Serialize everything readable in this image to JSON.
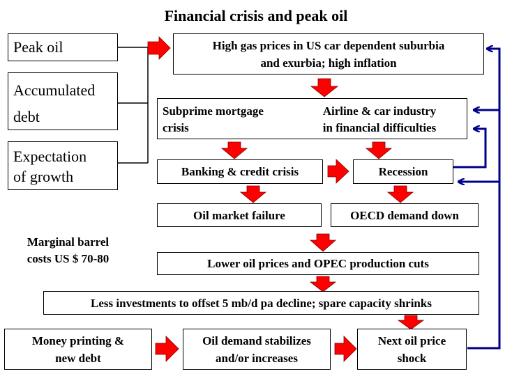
{
  "title": "Financial crisis and peak oil",
  "inputs": {
    "peak_oil": "Peak oil",
    "accumulated_debt": "Accumulated\ndebt",
    "expectation_growth": "Expectation\nof growth"
  },
  "nodes": {
    "high_gas": "High gas prices in US car dependent suburbia\nand exurbia; high inflation",
    "subprime": "Subprime mortgage\ncrisis",
    "airline_car": "Airline & car industry\nin financial difficulties",
    "banking": "Banking & credit crisis",
    "recession": "Recession",
    "oil_market_failure": "Oil market failure",
    "oecd_demand": "OECD demand down",
    "lower_oil": "Lower oil prices and OPEC production cuts",
    "less_investments": "Less investments to offset 5 mb/d pa decline; spare capacity shrinks",
    "money_printing": "Money printing &\nnew debt",
    "oil_demand": "Oil demand stabilizes\nand/or increases",
    "next_shock": "Next oil price\nshock"
  },
  "note": "Marginal barrel\ncosts US $ 70-80",
  "colors": {
    "arrow_fill": "#ff0000",
    "feedback_line": "#00008b",
    "border": "#000000"
  }
}
